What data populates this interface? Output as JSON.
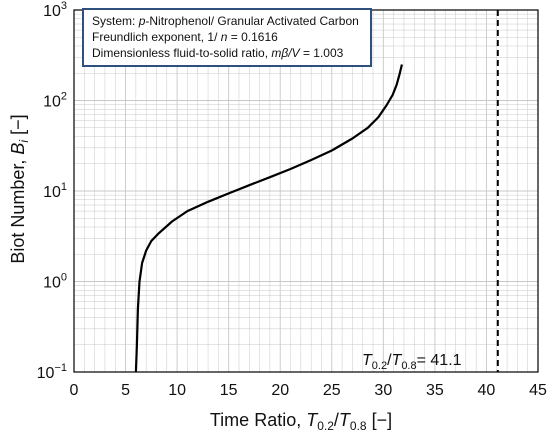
{
  "chart_data": {
    "type": "line",
    "xlabel_parts": {
      "main": "Time Ratio, ",
      "T1": "T",
      "s1": "0.2",
      "slash": "/",
      "T2": "T",
      "s2": "0.8",
      "unit": " [−]"
    },
    "ylabel_parts": {
      "main": "Biot Number, ",
      "sym": "B",
      "sub": "i",
      "unit": " [−]"
    },
    "xlim": [
      0,
      45
    ],
    "ylim_log10": [
      -1,
      3
    ],
    "y_scale": "log",
    "grid": true,
    "x_ticks": [
      0,
      5,
      10,
      15,
      20,
      25,
      30,
      35,
      40,
      45
    ],
    "y_ticks": [
      {
        "value": 0.1,
        "base": "10",
        "exp": "−1"
      },
      {
        "value": 1,
        "base": "10",
        "exp": "0"
      },
      {
        "value": 10,
        "base": "10",
        "exp": "1"
      },
      {
        "value": 100,
        "base": "10",
        "exp": "2"
      },
      {
        "value": 1000,
        "base": "10",
        "exp": "3"
      }
    ],
    "series": [
      {
        "x": [
          6.0,
          6.1,
          6.2,
          6.35,
          6.6,
          7.0,
          7.5,
          8.2,
          9.5,
          11,
          13,
          15,
          17,
          19,
          21,
          23,
          25,
          27,
          28.5,
          29.5,
          30.3,
          30.9,
          31.3,
          31.6,
          31.8
        ],
        "y": [
          0.1,
          0.2,
          0.5,
          1.0,
          1.6,
          2.2,
          2.8,
          3.4,
          4.6,
          6.0,
          7.6,
          9.4,
          11.6,
          14.2,
          17.5,
          22,
          28,
          38,
          50,
          65,
          88,
          115,
          150,
          200,
          250
        ]
      }
    ],
    "reference_line": {
      "x": 41.1,
      "style": "dashed"
    },
    "annotation": {
      "T1": "T",
      "s1": "0.2",
      "slash": "/",
      "T2": "T",
      "s2": "0.8",
      "value": "= 41.1"
    }
  },
  "info_box": {
    "line1_a": "System: ",
    "line1_b": "p",
    "line1_c": "-Nitrophenol/ Granular Activated Carbon",
    "line2_a": "Freundlich exponent, 1/ ",
    "line2_b": "n",
    "line2_c": " = 0.1616",
    "line3_a": "Dimensionless fluid-to-solid ratio,   ",
    "line3_b": "mβ/V",
    "line3_c": " = 1.003"
  },
  "colors": {
    "curve": "#000000",
    "grid": "#c8c8c8",
    "box_border": "#2f4f7f"
  }
}
